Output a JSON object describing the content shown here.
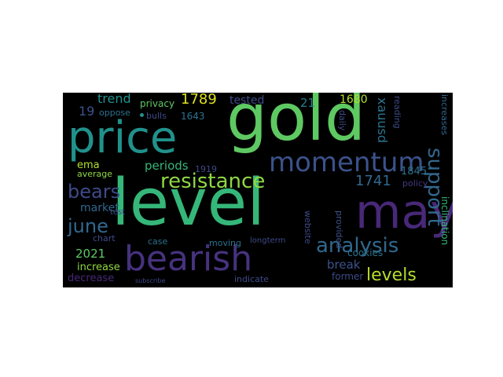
{
  "words": [
    {
      "id": "gold",
      "text": "gold",
      "color": "#5ec962"
    },
    {
      "id": "price",
      "text": "price",
      "color": "#21918c"
    },
    {
      "id": "level",
      "text": "level",
      "color": "#35b779"
    },
    {
      "id": "may",
      "text": "may",
      "color": "#482878"
    },
    {
      "id": "bearish",
      "text": "bearish",
      "color": "#46327e"
    },
    {
      "id": "momentum",
      "text": "momentum",
      "color": "#3b528b"
    },
    {
      "id": "resistance",
      "text": "resistance",
      "color": "#90d743"
    },
    {
      "id": "analysis",
      "text": "analysis",
      "color": "#31688e"
    },
    {
      "id": "support",
      "text": "support",
      "color": "#31688e"
    },
    {
      "id": "levels",
      "text": "levels",
      "color": "#b5de2b"
    },
    {
      "id": "bears",
      "text": "bears",
      "color": "#3e4a89"
    },
    {
      "id": "june",
      "text": "june",
      "color": "#31688e"
    },
    {
      "id": "trend",
      "text": "trend",
      "color": "#21918c"
    },
    {
      "id": "n1789",
      "text": "1789",
      "color": "#dde318"
    },
    {
      "id": "privacy",
      "text": "privacy",
      "color": "#5ec962"
    },
    {
      "id": "tested",
      "text": "tested",
      "color": "#3e4a89"
    },
    {
      "id": "n21",
      "text": "21",
      "color": "#287d8e"
    },
    {
      "id": "n1680",
      "text": "1680",
      "color": "#b5de2b"
    },
    {
      "id": "xauusd",
      "text": "xauusd",
      "color": "#2c728e"
    },
    {
      "id": "reading",
      "text": "reading",
      "color": "#3e4a89"
    },
    {
      "id": "increases",
      "text": "increases",
      "color": "#31688e"
    },
    {
      "id": "n19",
      "text": "19",
      "color": "#3b528b"
    },
    {
      "id": "oppose",
      "text": "oppose",
      "color": "#2c728e"
    },
    {
      "id": "bulls",
      "text": "bulls",
      "color": "#3e4a89"
    },
    {
      "id": "n1643",
      "text": "1643",
      "color": "#2c728e"
    },
    {
      "id": "daily",
      "text": "daily",
      "color": "#3e4a89"
    },
    {
      "id": "ema",
      "text": "ema",
      "color": "#b5de2b"
    },
    {
      "id": "periods",
      "text": "periods",
      "color": "#35b779"
    },
    {
      "id": "average",
      "text": "average",
      "color": "#90d743"
    },
    {
      "id": "n1919",
      "text": "1919",
      "color": "#3e4a89"
    },
    {
      "id": "n1741",
      "text": "1741",
      "color": "#31688e"
    },
    {
      "id": "n1845",
      "text": "1845",
      "color": "#2c728e"
    },
    {
      "id": "policy",
      "text": "policy",
      "color": "#443983"
    },
    {
      "id": "market",
      "text": "market",
      "color": "#31688e"
    },
    {
      "id": "test",
      "text": "test",
      "color": "#3e4a89"
    },
    {
      "id": "chart",
      "text": "chart",
      "color": "#3e4a89"
    },
    {
      "id": "website",
      "text": "website",
      "color": "#3e4a89"
    },
    {
      "id": "provided",
      "text": "provided",
      "color": "#3b528b"
    },
    {
      "id": "inclination",
      "text": "inclination",
      "color": "#35b779"
    },
    {
      "id": "n2021",
      "text": "2021",
      "color": "#5ec962"
    },
    {
      "id": "increase",
      "text": "increase",
      "color": "#90d743"
    },
    {
      "id": "decrease",
      "text": "decrease",
      "color": "#482878"
    },
    {
      "id": "case",
      "text": "case",
      "color": "#2c728e"
    },
    {
      "id": "moving",
      "text": "moving",
      "color": "#2c728e"
    },
    {
      "id": "longterm",
      "text": "longterm",
      "color": "#3e4a89"
    },
    {
      "id": "cookies",
      "text": "cookies",
      "color": "#2c728e"
    },
    {
      "id": "break",
      "text": "break",
      "color": "#3b528b"
    },
    {
      "id": "former",
      "text": "former",
      "color": "#3e4a89"
    },
    {
      "id": "indicate",
      "text": "indicate",
      "color": "#3e4a89"
    },
    {
      "id": "subscribe",
      "text": "subscribe",
      "color": "#3e4a89"
    }
  ]
}
